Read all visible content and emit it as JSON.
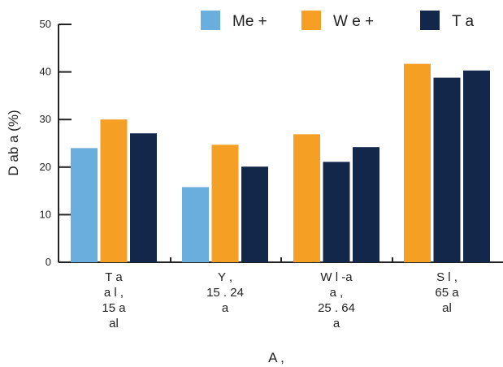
{
  "chart_data": {
    "type": "bar",
    "title": "",
    "xlabel": "A       ,",
    "ylabel": "D   ab    a (%)",
    "ylim": [
      0,
      50
    ],
    "yticks": [
      0,
      10,
      20,
      30,
      40,
      50
    ],
    "grid": false,
    "legend_position": "top",
    "categories": [
      [
        "T   a",
        "   a   l ,",
        "15   a",
        "al        "
      ],
      [
        "Y      ,",
        "15 . 24",
        "a"
      ],
      [
        "W   l   -a",
        "a     ,",
        "25 . 64",
        "a"
      ],
      [
        "S l     ,",
        "65  a",
        "al        "
      ]
    ],
    "series": [
      {
        "name": "Me  +",
        "color": "#6aaede",
        "values": [
          24,
          15.8,
          null,
          null
        ]
      },
      {
        "name": "W   e +",
        "color": "#f5a024",
        "values": [
          30,
          24.7,
          26.9,
          41.7
        ]
      },
      {
        "name": "T  a",
        "color": "#13274b",
        "values": [
          27.1,
          20.1,
          21.1,
          38.8
        ]
      },
      {
        "name": "T  a",
        "color": "#13274b",
        "values": [
          null,
          null,
          24.2,
          40.3
        ]
      }
    ]
  }
}
